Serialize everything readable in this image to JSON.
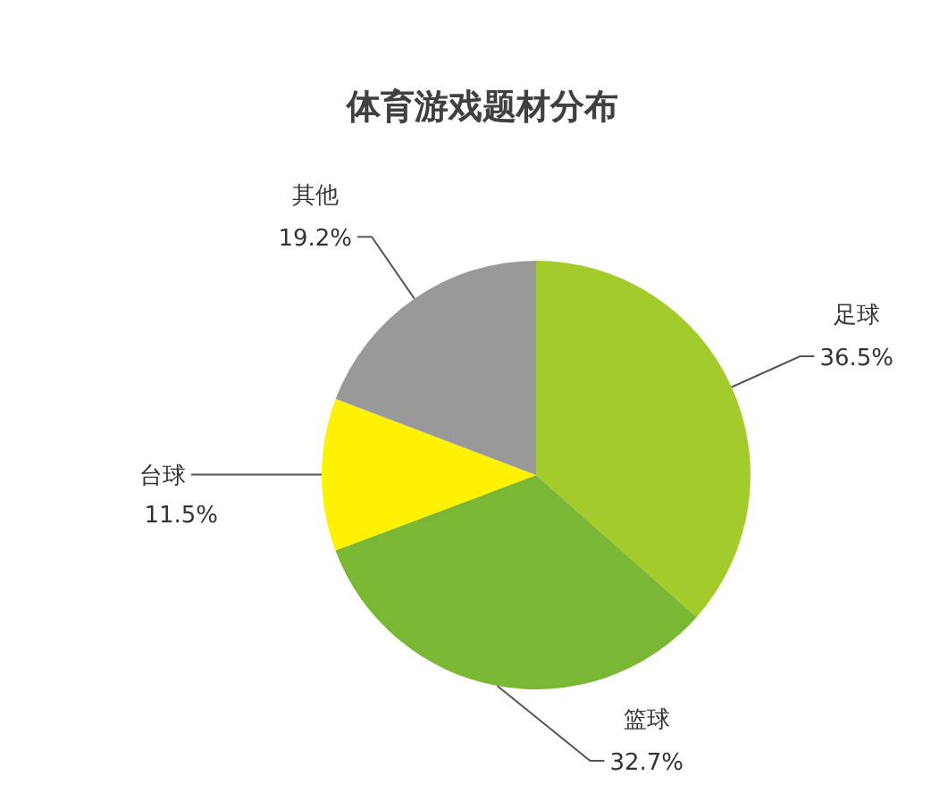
{
  "chart_data": {
    "type": "pie",
    "title": "体育游戏题材分布",
    "categories": [
      "足球",
      "篮球",
      "台球",
      "其他"
    ],
    "values": [
      36.5,
      32.7,
      11.5,
      19.2
    ],
    "colors": [
      "#a2cb2b",
      "#7ab734",
      "#fff200",
      "#999999"
    ],
    "value_labels": [
      "36.5%",
      "32.7%",
      "11.5%",
      "19.2%"
    ]
  }
}
